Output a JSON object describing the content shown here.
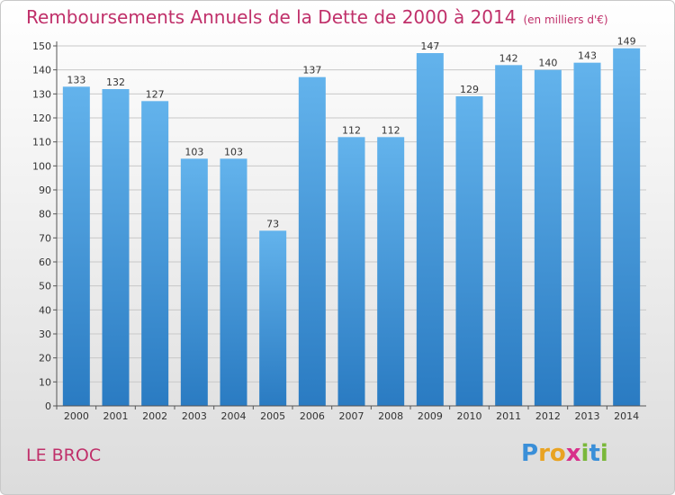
{
  "title": "Remboursements Annuels de la Dette de 2000 à 2014",
  "unit": "(en milliers d'€)",
  "commune": "LE BROC",
  "logo": "Proxiti",
  "chart_data": {
    "type": "bar",
    "categories": [
      "2000",
      "2001",
      "2002",
      "2003",
      "2004",
      "2005",
      "2006",
      "2007",
      "2008",
      "2009",
      "2010",
      "2011",
      "2012",
      "2013",
      "2014"
    ],
    "values": [
      133,
      132,
      127,
      103,
      103,
      73,
      137,
      112,
      112,
      147,
      129,
      142,
      140,
      143,
      149
    ],
    "ylim": [
      0,
      150
    ],
    "yticks": [
      0,
      10,
      20,
      30,
      40,
      50,
      60,
      70,
      80,
      90,
      100,
      110,
      120,
      130,
      140,
      150
    ],
    "grid": true,
    "bar_color_top": "#63b3ec",
    "bar_color_bottom": "#2a7bc2"
  }
}
